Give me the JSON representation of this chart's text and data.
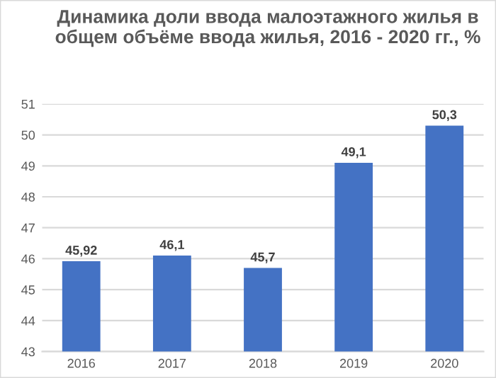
{
  "chart_data": {
    "type": "bar",
    "title": "Динамика доли ввода малоэтажного жилья в общем объёме ввода жилья, 2016 - 2020 гг., %",
    "categories": [
      "2016",
      "2017",
      "2018",
      "2019",
      "2020"
    ],
    "values": [
      45.92,
      46.1,
      45.7,
      49.1,
      50.3
    ],
    "value_labels": [
      "45,92",
      "46,1",
      "45,7",
      "49,1",
      "50,3"
    ],
    "color": "#4472c4",
    "ylim": [
      43,
      51
    ],
    "yticks": [
      43,
      44,
      45,
      46,
      47,
      48,
      49,
      50,
      51
    ],
    "grid": "y",
    "legend": false
  }
}
